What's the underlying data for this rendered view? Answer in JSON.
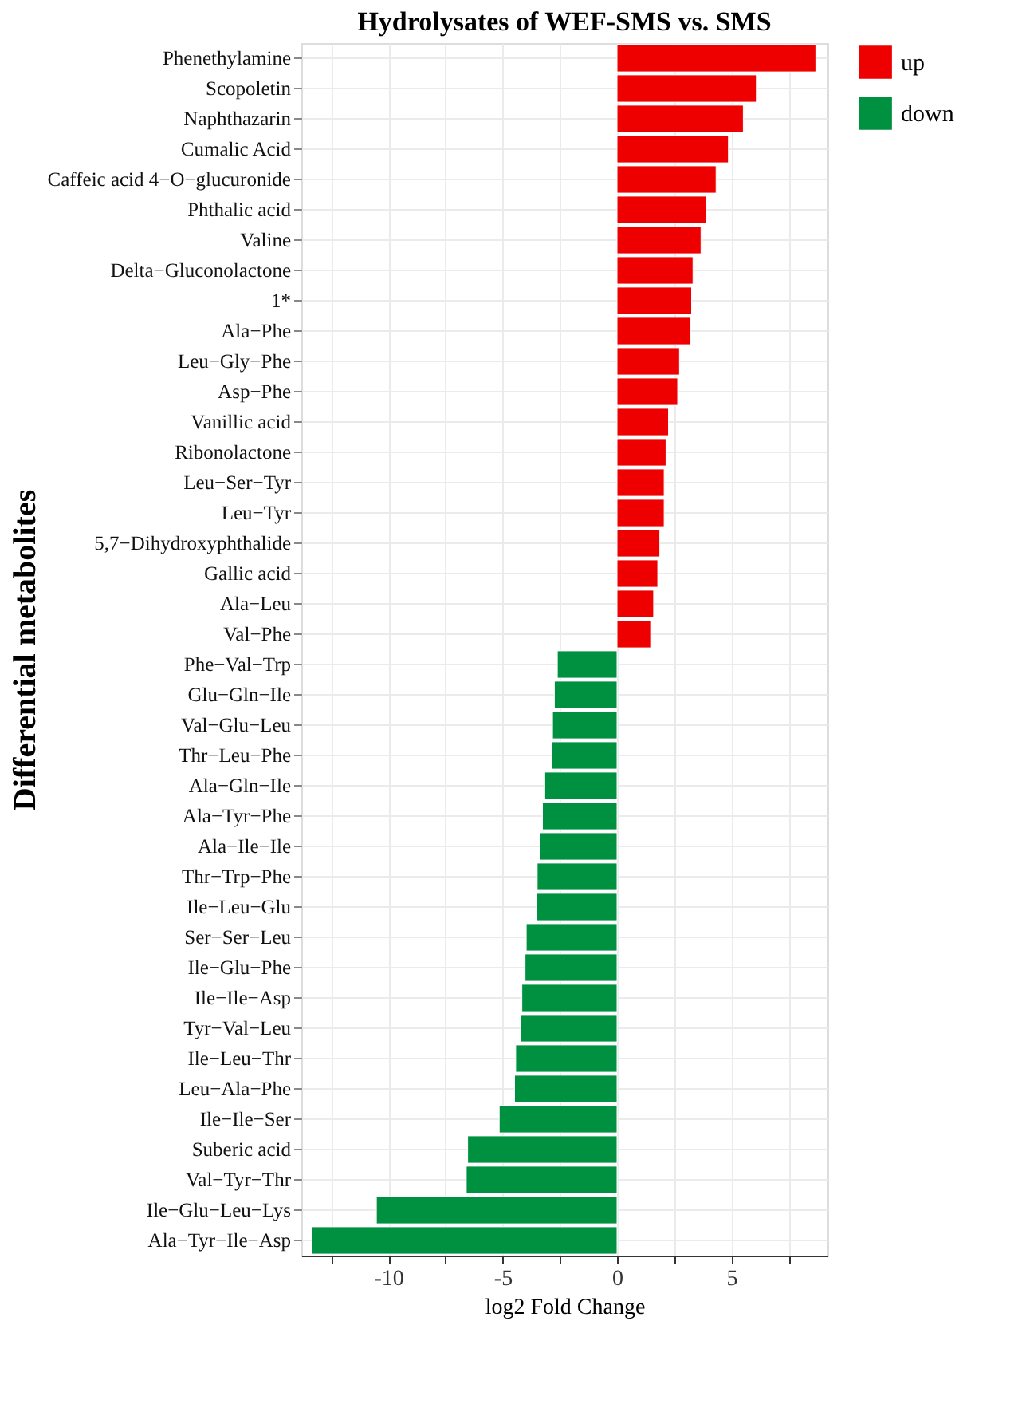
{
  "chart_data": {
    "type": "bar",
    "orientation": "horizontal",
    "title": "Hydrolysates of WEF-SMS vs. SMS",
    "xlabel": "log2 Fold Change",
    "ylabel": "Differential metabolites",
    "categories": [
      "Phenethylamine",
      "Scopoletin",
      "Naphthazarin",
      "Cumalic Acid",
      "Caffeic acid 4−O−glucuronide",
      "Phthalic acid",
      "Valine",
      "Delta−Gluconolactone",
      "1*",
      "Ala−Phe",
      "Leu−Gly−Phe",
      "Asp−Phe",
      "Vanillic acid",
      "Ribonolactone",
      "Leu−Ser−Tyr",
      "Leu−Tyr",
      "5,7−Dihydroxyphthalide",
      "Gallic acid",
      "Ala−Leu",
      "Val−Phe",
      "Phe−Val−Trp",
      "Glu−Gln−Ile",
      "Val−Glu−Leu",
      "Thr−Leu−Phe",
      "Ala−Gln−Ile",
      "Ala−Tyr−Phe",
      "Ala−Ile−Ile",
      "Thr−Trp−Phe",
      "Ile−Leu−Glu",
      "Ser−Ser−Leu",
      "Ile−Glu−Phe",
      "Ile−Ile−Asp",
      "Tyr−Val−Leu",
      "Ile−Leu−Thr",
      "Leu−Ala−Phe",
      "Ile−Ile−Ser",
      "Suberic acid",
      "Val−Tyr−Thr",
      "Ile−Glu−Leu−Lys",
      "Ala−Tyr−Ile−Asp"
    ],
    "series": [
      {
        "name": "up",
        "color": "#ee0000",
        "values": [
          8.69,
          6.09,
          5.52,
          4.87,
          4.33,
          3.89,
          3.67,
          3.32,
          3.26,
          3.21,
          2.73,
          2.65,
          2.25,
          2.14,
          2.06,
          2.06,
          1.87,
          1.78,
          1.6,
          1.47,
          null,
          null,
          null,
          null,
          null,
          null,
          null,
          null,
          null,
          null,
          null,
          null,
          null,
          null,
          null,
          null,
          null,
          null,
          null,
          null
        ]
      },
      {
        "name": "down",
        "color": "#009140",
        "values": [
          null,
          null,
          null,
          null,
          null,
          null,
          null,
          null,
          null,
          null,
          null,
          null,
          null,
          null,
          null,
          null,
          null,
          null,
          null,
          null,
          -2.61,
          -2.74,
          -2.82,
          -2.85,
          -3.16,
          -3.26,
          -3.37,
          -3.49,
          -3.52,
          -3.97,
          -4.02,
          -4.16,
          -4.21,
          -4.43,
          -4.48,
          -5.15,
          -6.53,
          -6.59,
          -10.52,
          -13.33
        ]
      }
    ],
    "xlim": [
      -13.8,
      9.2
    ],
    "xticks": [
      {
        "value": -12.5,
        "label": null
      },
      -10,
      {
        "value": -7.5,
        "label": null
      },
      -5,
      {
        "value": -2.5,
        "label": null
      },
      0,
      {
        "value": 2.5,
        "label": null
      },
      5,
      {
        "value": 7.5,
        "label": null
      }
    ],
    "grid": true,
    "legend": "right"
  }
}
